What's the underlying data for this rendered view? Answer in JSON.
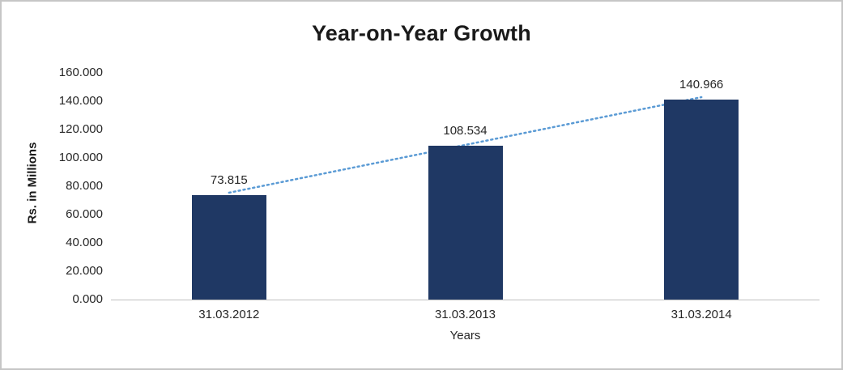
{
  "chart_data": {
    "type": "bar",
    "title": "Year-on-Year Growth",
    "xlabel": "Years",
    "ylabel": "Rs. in Millions",
    "categories": [
      "31.03.2012",
      "31.03.2013",
      "31.03.2014"
    ],
    "values": [
      73.815,
      108.534,
      140.966
    ],
    "value_labels": [
      "73.815",
      "108.534",
      "140.966"
    ],
    "ylim": [
      0,
      160
    ],
    "ytick_labels": [
      "0.000",
      "20.000",
      "40.000",
      "60.000",
      "80.000",
      "100.000",
      "120.000",
      "140.000",
      "160.000"
    ],
    "grid": false,
    "legend": "none",
    "trendline": true,
    "colors": {
      "bar": "#1F3864",
      "trendline": "#5B9BD5",
      "axis": "#BFBFBF",
      "text": "#262626"
    }
  }
}
